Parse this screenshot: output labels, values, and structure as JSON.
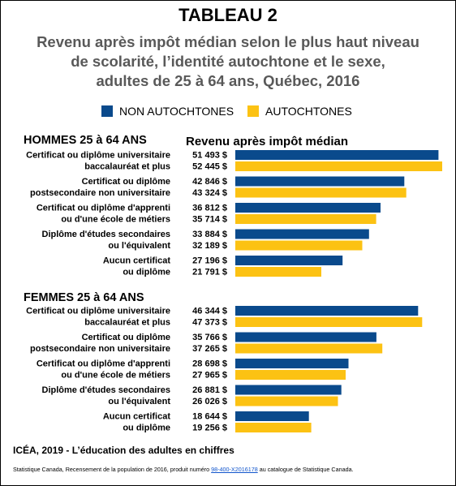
{
  "header": {
    "title": "TABLEAU 2",
    "subtitle_lines": [
      "Revenu après impôt médian selon le plus haut niveau",
      "de scolarité, l’identité autochtone et le sexe,",
      "adultes de 25 à 64 ans, Québec, 2016"
    ]
  },
  "legend": {
    "items": [
      {
        "label": "NON AUTOCHTONES",
        "color": "#0a4a8c"
      },
      {
        "label": "AUTOCHTONES",
        "color": "#fcc213"
      }
    ]
  },
  "value_header": "Revenu après impôt médian",
  "footer": {
    "source_line": "ICÉA, 2019 - L’éducation des adultes en chiffres",
    "note_prefix": "Statistique Canada, Recensement de la population de 2016, produit numéro ",
    "note_link": "98-400-X2016178",
    "note_suffix": " au catalogue de Statistique Canada."
  },
  "chart_data": {
    "type": "bar",
    "orientation": "horizontal",
    "title": "TABLEAU 2",
    "subtitle": "Revenu après impôt médian selon le plus haut niveau de scolarité, l’identité autochtone et le sexe, adultes de 25 à 64 ans, Québec, 2016",
    "value_label": "Revenu après impôt médian",
    "unit": "$",
    "xlim": [
      0,
      52445
    ],
    "grid": false,
    "legend_position": "top",
    "series_names": [
      "NON AUTOCHTONES",
      "AUTOCHTONES"
    ],
    "groups": [
      {
        "name": "HOMMES 25 à 64 ANS",
        "categories": [
          {
            "label": [
              "Certificat ou diplôme universitaire",
              "baccalauréat et plus"
            ],
            "values": [
              51493,
              52445
            ],
            "value_labels": [
              "51 493 $",
              "52 445 $"
            ]
          },
          {
            "label": [
              "Certificat ou diplôme",
              "postsecondaire non universitaire"
            ],
            "values": [
              42846,
              43324
            ],
            "value_labels": [
              "42 846 $",
              "43 324 $"
            ]
          },
          {
            "label": [
              "Certificat ou diplôme d'apprenti",
              "ou d'une école de métiers"
            ],
            "values": [
              36812,
              35714
            ],
            "value_labels": [
              "36 812 $",
              "35 714 $"
            ]
          },
          {
            "label": [
              "Diplôme d'études secondaires",
              "ou l'équivalent"
            ],
            "values": [
              33884,
              32189
            ],
            "value_labels": [
              "33 884 $",
              "32 189 $"
            ]
          },
          {
            "label": [
              "Aucun certificat",
              "ou diplôme"
            ],
            "values": [
              27196,
              21791
            ],
            "value_labels": [
              "27 196 $",
              "21 791 $"
            ]
          }
        ]
      },
      {
        "name": "FEMMES 25 à 64 ANS",
        "categories": [
          {
            "label": [
              "Certificat ou diplôme universitaire",
              "baccalauréat et plus"
            ],
            "values": [
              46344,
              47373
            ],
            "value_labels": [
              "46 344 $",
              "47 373 $"
            ]
          },
          {
            "label": [
              "Certificat ou diplôme",
              "postsecondaire non universitaire"
            ],
            "values": [
              35766,
              37265
            ],
            "value_labels": [
              "35 766 $",
              "37 265 $"
            ]
          },
          {
            "label": [
              "Certificat ou diplôme d'apprenti",
              "ou d'une école de métiers"
            ],
            "values": [
              28698,
              27965
            ],
            "value_labels": [
              "28 698 $",
              "27 965 $"
            ]
          },
          {
            "label": [
              "Diplôme d'études secondaires",
              "ou l'équivalent"
            ],
            "values": [
              26881,
              26026
            ],
            "value_labels": [
              "26 881 $",
              "26 026 $"
            ]
          },
          {
            "label": [
              "Aucun certificat",
              "ou diplôme"
            ],
            "values": [
              18644,
              19256
            ],
            "value_labels": [
              "18 644 $",
              "19 256 $"
            ]
          }
        ]
      }
    ]
  }
}
